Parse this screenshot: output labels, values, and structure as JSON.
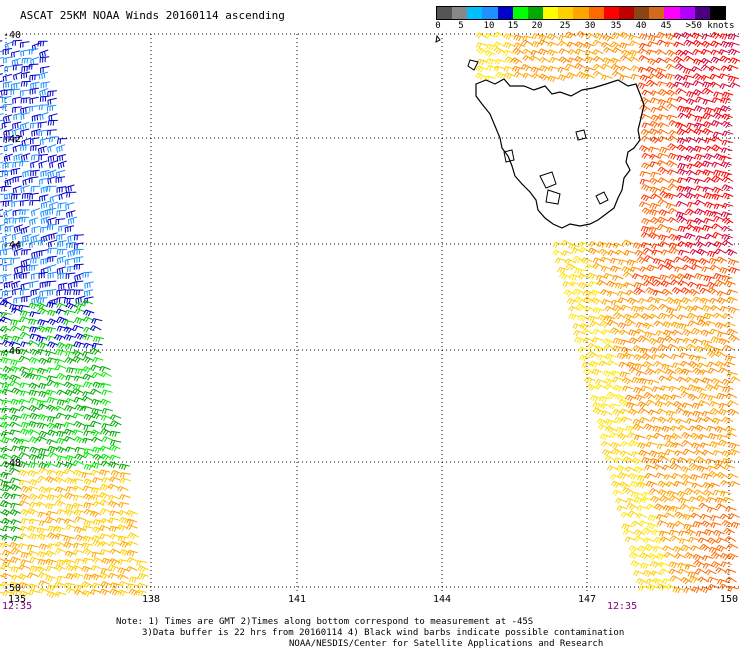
{
  "title": "ASCAT 25KM NOAA Winds 20160114 ascending",
  "legend": {
    "colors": [
      "#555555",
      "#888888",
      "#00bfff",
      "#1e90ff",
      "#0000cd",
      "#00ff00",
      "#00aa00",
      "#ffff00",
      "#ffd000",
      "#ffa500",
      "#ff6a00",
      "#ff0000",
      "#c00000",
      "#8b4513",
      "#d2691e",
      "#ff00ff",
      "#b000ff",
      "#4b0082",
      "#000000"
    ],
    "labels": [
      "0",
      "5",
      "10",
      "15",
      "20",
      "25",
      "30",
      "35",
      "40",
      "45",
      ">50 knots"
    ]
  },
  "map": {
    "lon_ticks": [
      "135",
      "138",
      "141",
      "144",
      "147",
      "150"
    ],
    "lat_ticks": [
      "-40",
      "-42",
      "-44",
      "-46",
      "-48",
      "-50"
    ],
    "time_labels": [
      "12:35",
      "12:35"
    ]
  },
  "notes": [
    "Note: 1) Times are GMT 2)Times along bottom correspond to measurement at -45S",
    "3)Data buffer is 22 hrs from 20160114 4) Black wind barbs indicate possible contamination",
    "NOAA/NESDIS/Center for Satellite Applications and Research"
  ]
}
